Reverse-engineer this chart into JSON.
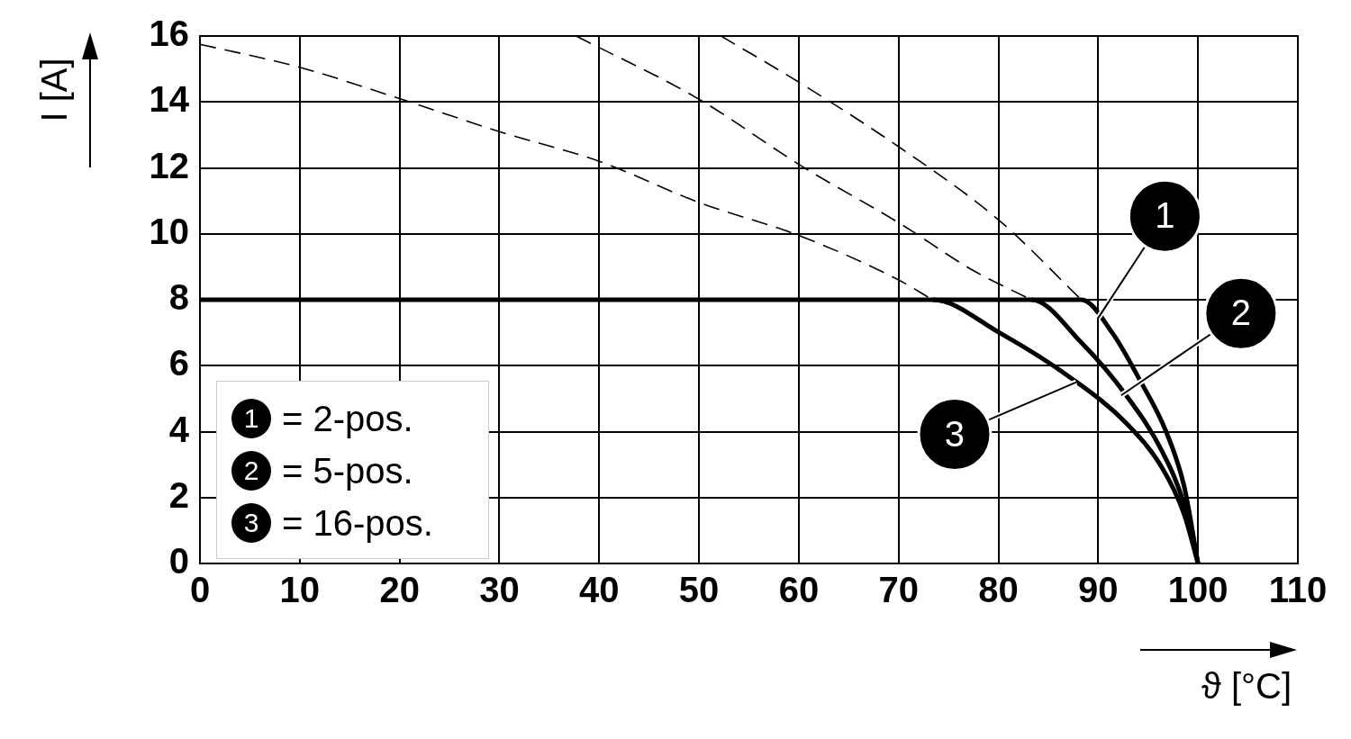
{
  "chart_data": {
    "type": "line",
    "xlabel": "ϑ [°C]",
    "ylabel": "I [A]",
    "xlim": [
      0,
      110
    ],
    "ylim": [
      0,
      16
    ],
    "xticks": [
      0,
      10,
      20,
      30,
      40,
      50,
      60,
      70,
      80,
      90,
      100,
      110
    ],
    "yticks": [
      0,
      2,
      4,
      6,
      8,
      10,
      12,
      14,
      16
    ],
    "grid": true,
    "legend": "bottom left",
    "marker": "none",
    "series": [
      {
        "name": "= 2-pos.",
        "color": "#000000",
        "line_style": "solid",
        "x": [
          83.3,
          88.3,
          91.4,
          94.1,
          96.8,
          98.6,
          100
        ],
        "values": [
          8,
          8,
          7.0,
          5.6,
          4.0,
          2.35,
          0
        ]
      },
      {
        "name": "= 5-pos.",
        "color": "#000000",
        "line_style": "solid",
        "x": [
          73.4,
          83.3,
          88.3,
          92.8,
          96.4,
          98.6,
          100
        ],
        "values": [
          8,
          8,
          6.7,
          5.1,
          3.4,
          1.8,
          0
        ]
      },
      {
        "name": "= 16-pos.",
        "color": "#000000",
        "line_style": "solid",
        "x": [
          0,
          73.4,
          80.1,
          87.4,
          92.8,
          96.4,
          98.6,
          100
        ],
        "values": [
          8,
          8,
          7.0,
          5.6,
          4.26,
          2.9,
          1.5,
          0
        ]
      },
      {
        "color": "#000000",
        "line_style": "dashed",
        "x": [
          52.2,
          60,
          70.2,
          80.1,
          88.3
        ],
        "values": [
          16,
          14.6,
          12.6,
          10.4,
          8
        ]
      },
      {
        "color": "#000000",
        "line_style": "dashed",
        "x": [
          37.7,
          49.9,
          60.3,
          70.2,
          77.4,
          83.3
        ],
        "values": [
          16,
          14.1,
          12.05,
          10.3,
          8.9,
          8
        ]
      },
      {
        "color": "#000000",
        "line_style": "dashed",
        "x": [
          0,
          10,
          20,
          30,
          40,
          50,
          60,
          70,
          73.4
        ],
        "values": [
          15.75,
          15.05,
          14.1,
          13.1,
          12.2,
          10.95,
          9.95,
          8.6,
          8
        ]
      }
    ],
    "annotations": [
      {
        "text": "1",
        "x": 90,
        "y": 7.45
      },
      {
        "text": "2",
        "x": 92.3,
        "y": 5.1
      },
      {
        "text": "3",
        "x": 87.8,
        "y": 5.5
      }
    ]
  }
}
